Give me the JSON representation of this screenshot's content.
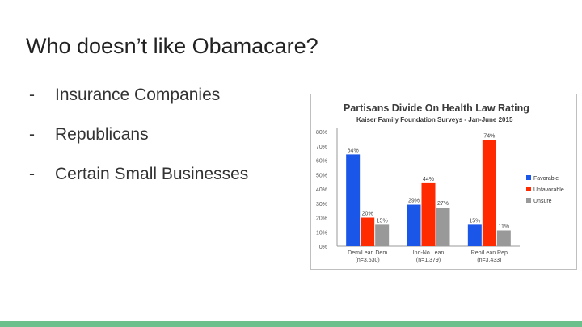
{
  "slide": {
    "title": "Who doesn’t like Obamacare?",
    "bullets": [
      {
        "dash": "-",
        "text": "Insurance Companies"
      },
      {
        "dash": "-",
        "text": "Republicans"
      },
      {
        "dash": "-",
        "text": "Certain Small Businesses"
      }
    ]
  },
  "colors": {
    "favorable": "#1a56e8",
    "unfavorable": "#ff2a00",
    "unsure": "#999999",
    "accent_bar": "#6cc08b",
    "chart_title": "#3a3a3a"
  },
  "chart_data": {
    "type": "bar",
    "title": "Partisans Divide On Health Law Rating",
    "subtitle": "Kaiser Family Foundation Surveys - Jan-June 2015",
    "categories": [
      "Dem/Lean Dem",
      "Ind-No Lean",
      "Rep/Lean Rep"
    ],
    "category_notes": [
      "(n=3,530)",
      "(n=1,379)",
      "(n=3,433)"
    ],
    "series": [
      {
        "name": "Favorable",
        "values": [
          64,
          29,
          15
        ],
        "labels": [
          "64%",
          "29%",
          "15%"
        ]
      },
      {
        "name": "Unfavorable",
        "values": [
          20,
          44,
          74
        ],
        "labels": [
          "20%",
          "44%",
          "74%"
        ]
      },
      {
        "name": "Unsure",
        "values": [
          15,
          27,
          11
        ],
        "labels": [
          "15%",
          "27%",
          "11%"
        ]
      }
    ],
    "yticks": [
      "0%",
      "10%",
      "20%",
      "30%",
      "40%",
      "50%",
      "60%",
      "70%",
      "80%"
    ],
    "ylim": [
      0,
      80
    ],
    "grid": false,
    "legend": "right"
  }
}
